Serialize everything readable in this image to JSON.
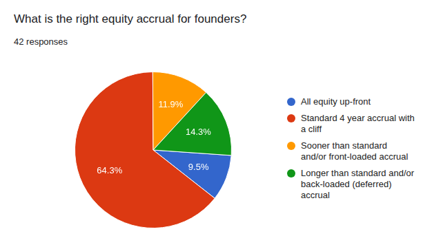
{
  "chart_data": {
    "type": "pie",
    "title": "What is the right equity accrual for founders?",
    "subtitle": "42 responses",
    "categories": [
      "All equity up-front",
      "Standard 4 year accrual with a cliff",
      "Sooner than standard and/or front-loaded accrual",
      "Longer than standard and/or back-loaded (deferred) accrual"
    ],
    "values": [
      9.5,
      64.3,
      11.9,
      14.3
    ],
    "value_labels": [
      "9.5%",
      "64.3%",
      "11.9%",
      "14.3%"
    ],
    "colors": [
      "#3366cc",
      "#dc3912",
      "#ff9900",
      "#109618"
    ],
    "data_labels": true,
    "legend": "right"
  }
}
